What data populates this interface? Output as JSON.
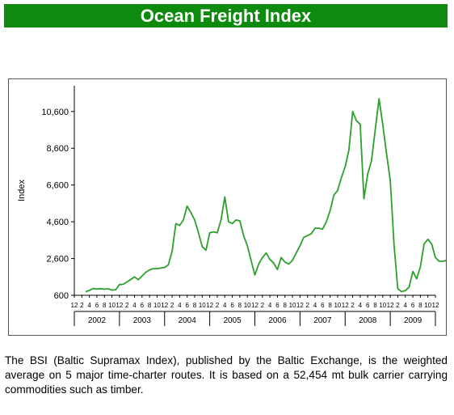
{
  "page": {
    "title": "Ocean Freight Index",
    "description": "The BSI (Baltic Supramax Index), published by the Baltic Exchange, is the weighted average on 5 major time-charter routes. It is based on a 52,454 mt bulk carrier carrying commodities such as timber."
  },
  "colors": {
    "banner": "#0e8a0e",
    "line": "#2ca02c"
  },
  "chart_data": {
    "type": "line",
    "title": "",
    "xlabel": "",
    "ylabel": "Index",
    "ylim": [
      600,
      12000
    ],
    "yticks": [
      600,
      2600,
      4600,
      6600,
      8600,
      10600
    ],
    "ytick_labels": [
      "600",
      "2,600",
      "4,600",
      "6,600",
      "8,600",
      "10,600"
    ],
    "grid": false,
    "legend": "none",
    "x_month_labels": [
      "12",
      "2",
      "4",
      "6",
      "8",
      "10",
      "12",
      "2",
      "4",
      "6",
      "8",
      "10",
      "12",
      "2",
      "4",
      "6",
      "8",
      "10",
      "12",
      "2",
      "4",
      "6",
      "8",
      "10",
      "12",
      "2",
      "4",
      "6",
      "8",
      "10",
      "12",
      "2",
      "4",
      "6",
      "8",
      "10",
      "12",
      "2",
      "4",
      "6",
      "8",
      "10",
      "12",
      "2",
      "4",
      "6",
      "8",
      "10",
      "12"
    ],
    "x_year_labels": [
      "2002",
      "2003",
      "2004",
      "2005",
      "2006",
      "2007",
      "2008",
      "2009"
    ],
    "x_start": "2001-12",
    "series": [
      {
        "values": [
          800,
          860,
          970,
          940,
          960,
          930,
          950,
          880,
          900,
          1180,
          1200,
          1320,
          1460,
          1600,
          1450,
          1650,
          1850,
          1980,
          2050,
          2050,
          2080,
          2120,
          2250,
          3000,
          4500,
          4400,
          4700,
          5450,
          5100,
          4700,
          4000,
          3250,
          3050,
          4000,
          4050,
          4000,
          4700,
          5950,
          4600,
          4500,
          4700,
          4650,
          3850,
          3300,
          2500,
          1700,
          2300,
          2650,
          2900,
          2550,
          2350,
          2000,
          2650,
          2400,
          2300,
          2500,
          2900,
          3300,
          3750,
          3850,
          3950,
          4250,
          4250,
          4200,
          4600,
          5200,
          6050,
          6300,
          7000,
          7600,
          8500,
          10600,
          10100,
          9900,
          5850,
          7200,
          7900,
          9600,
          11300,
          9900,
          8300,
          6850,
          3350,
          950,
          800,
          850,
          1050,
          1900,
          1500,
          2150,
          3400,
          3650,
          3400,
          2650,
          2450,
          2450,
          2500
        ]
      }
    ]
  }
}
